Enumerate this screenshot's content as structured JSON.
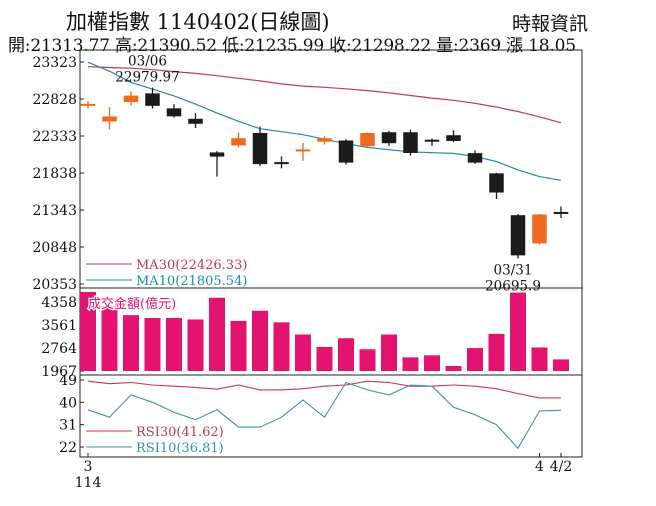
{
  "header": {
    "title": "加權指數 1140402(日線圖)",
    "source": "時報資訊",
    "stats": "開:21313.77 高:21390.52 低:21235.99 收:21298.22 量:2369 漲 18.05"
  },
  "colors": {
    "up": "#ee6a1e",
    "down": "#1b1b1b",
    "ma30": "#c9364f",
    "ma10": "#1e8bb0",
    "volume": "#e3146f",
    "rsi30": "#c9364f",
    "rsi10": "#3a8fbe"
  },
  "chart_data": [
    {
      "type": "candlestick",
      "name": "price",
      "ylim": [
        20353,
        23323
      ],
      "yticks": [
        23323,
        22828,
        22333,
        21838,
        21343,
        20848,
        20353
      ],
      "xlabels": [
        {
          "index": 0,
          "text": "3"
        },
        {
          "index": 0,
          "text": "114"
        },
        {
          "index": 21,
          "text": "4"
        },
        {
          "index": 22,
          "text": "4/2"
        }
      ],
      "candles": [
        {
          "o": 22750,
          "h": 22800,
          "l": 22700,
          "c": 22760
        },
        {
          "o": 22530,
          "h": 22720,
          "l": 22420,
          "c": 22590
        },
        {
          "o": 22790,
          "h": 22930,
          "l": 22740,
          "c": 22870
        },
        {
          "o": 22900,
          "h": 22979.97,
          "l": 22700,
          "c": 22740
        },
        {
          "o": 22700,
          "h": 22760,
          "l": 22580,
          "c": 22600
        },
        {
          "o": 22560,
          "h": 22640,
          "l": 22440,
          "c": 22500
        },
        {
          "o": 22110,
          "h": 22130,
          "l": 21790,
          "c": 22060
        },
        {
          "o": 22210,
          "h": 22380,
          "l": 22180,
          "c": 22300
        },
        {
          "o": 22370,
          "h": 22460,
          "l": 21930,
          "c": 21960
        },
        {
          "o": 21980,
          "h": 22060,
          "l": 21900,
          "c": 21960
        },
        {
          "o": 22130,
          "h": 22240,
          "l": 22000,
          "c": 22150
        },
        {
          "o": 22260,
          "h": 22330,
          "l": 22220,
          "c": 22300
        },
        {
          "o": 22270,
          "h": 22290,
          "l": 21950,
          "c": 21980
        },
        {
          "o": 22200,
          "h": 22380,
          "l": 22190,
          "c": 22370
        },
        {
          "o": 22380,
          "h": 22400,
          "l": 22200,
          "c": 22240
        },
        {
          "o": 22380,
          "h": 22420,
          "l": 22070,
          "c": 22110
        },
        {
          "o": 22280,
          "h": 22300,
          "l": 22200,
          "c": 22260
        },
        {
          "o": 22340,
          "h": 22410,
          "l": 22250,
          "c": 22270
        },
        {
          "o": 22100,
          "h": 22140,
          "l": 21960,
          "c": 21980
        },
        {
          "o": 21830,
          "h": 21840,
          "l": 21490,
          "c": 21580
        },
        {
          "o": 21270,
          "h": 21290,
          "l": 20695.9,
          "c": 20740
        },
        {
          "o": 20900,
          "h": 21290,
          "l": 20880,
          "c": 21280
        },
        {
          "o": 21313.77,
          "h": 21390.52,
          "l": 21235.99,
          "c": 21298.22
        }
      ],
      "annotations": [
        {
          "index": 3,
          "lines": [
            "03/06",
            "22979.97"
          ],
          "position": "above"
        },
        {
          "index": 20,
          "lines": [
            "03/31",
            "20695.9"
          ],
          "position": "below"
        }
      ],
      "series": [
        {
          "name": "MA30(22426.33)",
          "color_key": "ma30",
          "values": [
            23260,
            23250,
            23240,
            23220,
            23195,
            23170,
            23140,
            23105,
            23070,
            23030,
            23000,
            22985,
            22965,
            22940,
            22910,
            22875,
            22840,
            22810,
            22770,
            22720,
            22660,
            22590,
            22510
          ]
        },
        {
          "name": "MA10(21805.54)",
          "color_key": "ma10",
          "values": [
            23320,
            23200,
            23050,
            22960,
            22870,
            22760,
            22640,
            22530,
            22430,
            22390,
            22350,
            22290,
            22230,
            22180,
            22150,
            22120,
            22110,
            22100,
            22060,
            21990,
            21880,
            21790,
            21740
          ]
        }
      ]
    },
    {
      "type": "bar",
      "name": "volume",
      "legend": "成交金額(億元)",
      "ylim": [
        1967,
        4700
      ],
      "yticks": [
        4358,
        3561,
        2764,
        1967
      ],
      "values": [
        4700,
        4200,
        3900,
        3800,
        3800,
        3750,
        4500,
        3700,
        4050,
        3650,
        3230,
        2800,
        3100,
        2720,
        3230,
        2440,
        2510,
        2140,
        2760,
        3250,
        4680,
        2780,
        2369
      ]
    },
    {
      "type": "line",
      "name": "rsi",
      "ylim": [
        22,
        49
      ],
      "yticks": [
        49,
        40,
        31,
        22
      ],
      "series": [
        {
          "name": "RSI30(41.62)",
          "color_key": "rsi30",
          "values": [
            48.5,
            47.5,
            48,
            47,
            46.5,
            46,
            45.3,
            47,
            45,
            45,
            45.5,
            46.5,
            47,
            48.5,
            48,
            46.5,
            46.5,
            47,
            46.5,
            45.5,
            43.5,
            41.8,
            41.8
          ]
        },
        {
          "name": "RSI10(36.81)",
          "color_key": "rsi10",
          "values": [
            37,
            34,
            43,
            40,
            36,
            33,
            37,
            30,
            30,
            34,
            41,
            34,
            48,
            45,
            43,
            47,
            46.5,
            38,
            35,
            31,
            21.5,
            36.5,
            36.81
          ]
        }
      ]
    }
  ]
}
